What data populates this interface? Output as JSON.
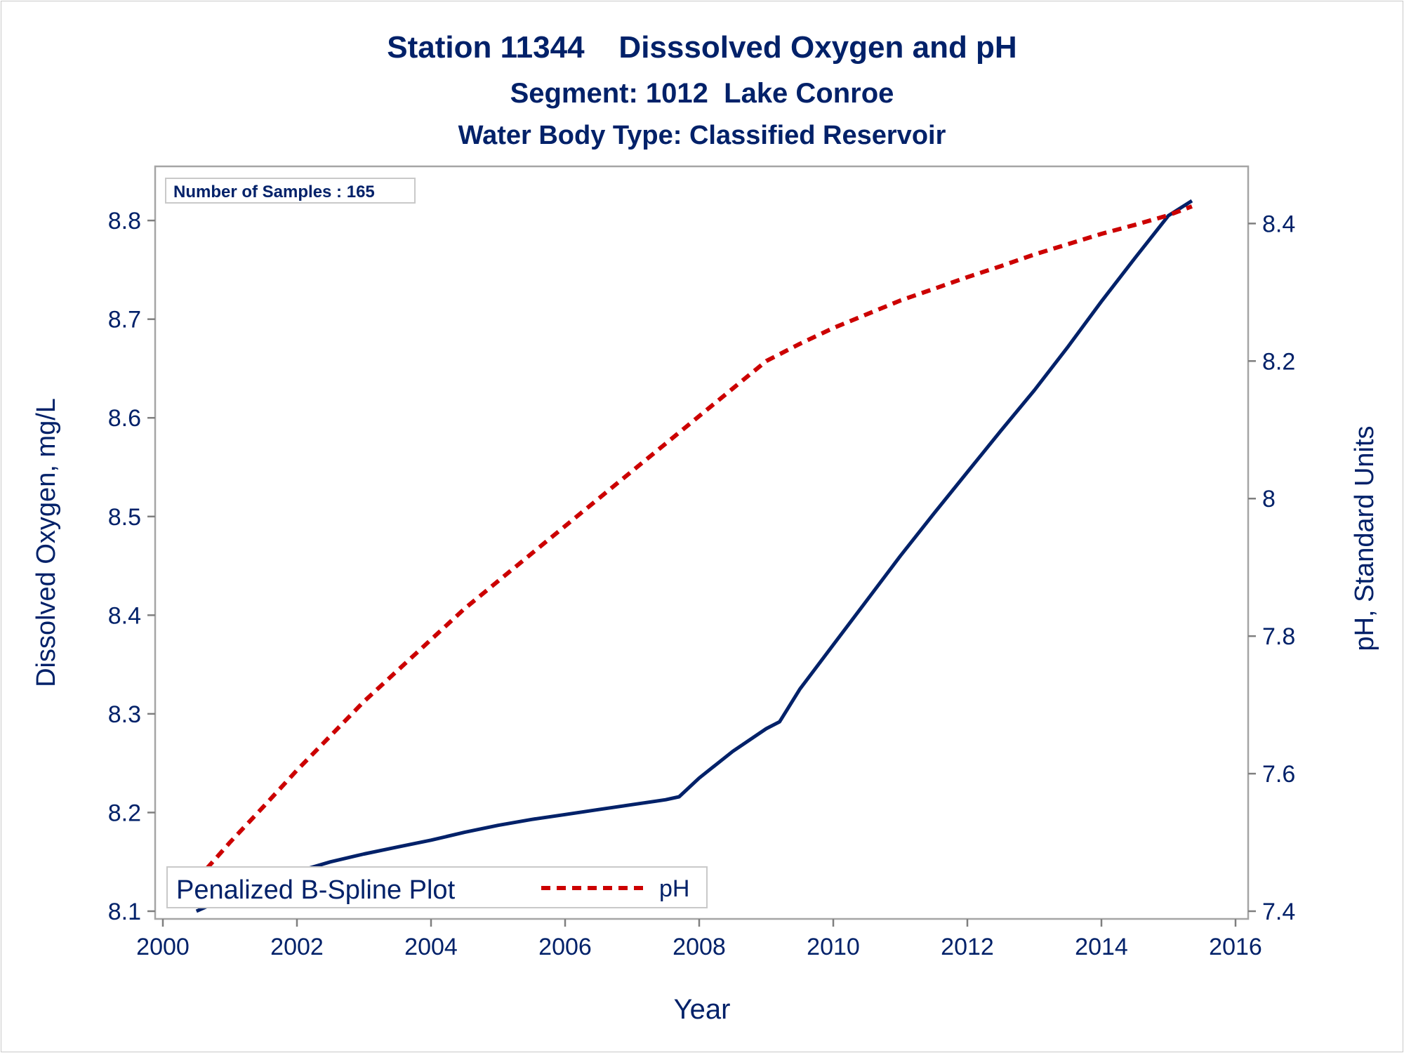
{
  "chart_data": {
    "type": "line",
    "title": "Station 11344    Disssolved Oxygen and pH",
    "subtitle": "Segment: 1012  Lake Conroe",
    "subtitle2": "Water Body Type: Classified Reservoir",
    "xlabel": "Year",
    "ylabel": "Dissolved Oxygen, mg/L",
    "y2label": "pH, Standard Units",
    "xlim": [
      2000,
      2016
    ],
    "ylim": [
      8.1,
      8.82
    ],
    "y2lim": [
      7.4,
      8.43
    ],
    "x_ticks": [
      "2000",
      "2002",
      "2004",
      "2006",
      "2008",
      "2010",
      "2012",
      "2014",
      "2016"
    ],
    "y_ticks": [
      "8.1",
      "8.2",
      "8.3",
      "8.4",
      "8.5",
      "8.6",
      "8.7",
      "8.8"
    ],
    "y2_ticks": [
      "7.4",
      "7.6",
      "7.8",
      "8",
      "8.2",
      "8.4"
    ],
    "grid": false,
    "annotation": "Number of Samples : 165",
    "legend": {
      "position": "bottom-left",
      "title": "Penalized B-Spline Plot",
      "entries": [
        "pH"
      ]
    },
    "series": [
      {
        "axis": "y",
        "color": "#012169",
        "style": "solid",
        "x": [
          2000.5,
          2001.0,
          2001.5,
          2002.0,
          2002.5,
          2003.0,
          2003.5,
          2004.0,
          2004.5,
          2005.0,
          2005.5,
          2006.0,
          2006.5,
          2007.0,
          2007.5,
          2007.7,
          2008.0,
          2008.5,
          2009.0,
          2009.2,
          2009.5,
          2010.0,
          2010.5,
          2011.0,
          2011.5,
          2012.0,
          2012.5,
          2013.0,
          2013.5,
          2014.0,
          2014.5,
          2015.0,
          2015.35
        ],
        "values": [
          8.1,
          8.115,
          8.128,
          8.14,
          8.15,
          8.158,
          8.165,
          8.172,
          8.18,
          8.187,
          8.193,
          8.198,
          8.203,
          8.208,
          8.213,
          8.216,
          8.235,
          8.262,
          8.285,
          8.292,
          8.325,
          8.37,
          8.415,
          8.46,
          8.503,
          8.545,
          8.587,
          8.628,
          8.672,
          8.718,
          8.762,
          8.805,
          8.82
        ]
      },
      {
        "name": "pH",
        "axis": "y2",
        "color": "#cc0000",
        "style": "dashed",
        "x": [
          2000.5,
          2001.0,
          2001.5,
          2002.0,
          2002.5,
          2003.0,
          2003.5,
          2004.0,
          2004.5,
          2005.0,
          2005.5,
          2006.0,
          2006.5,
          2007.0,
          2007.5,
          2008.0,
          2008.5,
          2009.0,
          2009.5,
          2010.0,
          2010.5,
          2011.0,
          2011.5,
          2012.0,
          2012.5,
          2013.0,
          2013.5,
          2014.0,
          2014.5,
          2015.0,
          2015.35
        ],
        "values": [
          7.445,
          7.5,
          7.552,
          7.605,
          7.655,
          7.705,
          7.75,
          7.795,
          7.84,
          7.88,
          7.92,
          7.96,
          8.0,
          8.04,
          8.08,
          8.12,
          8.16,
          8.2,
          8.225,
          8.248,
          8.268,
          8.288,
          8.305,
          8.322,
          8.338,
          8.355,
          8.37,
          8.385,
          8.398,
          8.412,
          8.425
        ]
      }
    ]
  }
}
